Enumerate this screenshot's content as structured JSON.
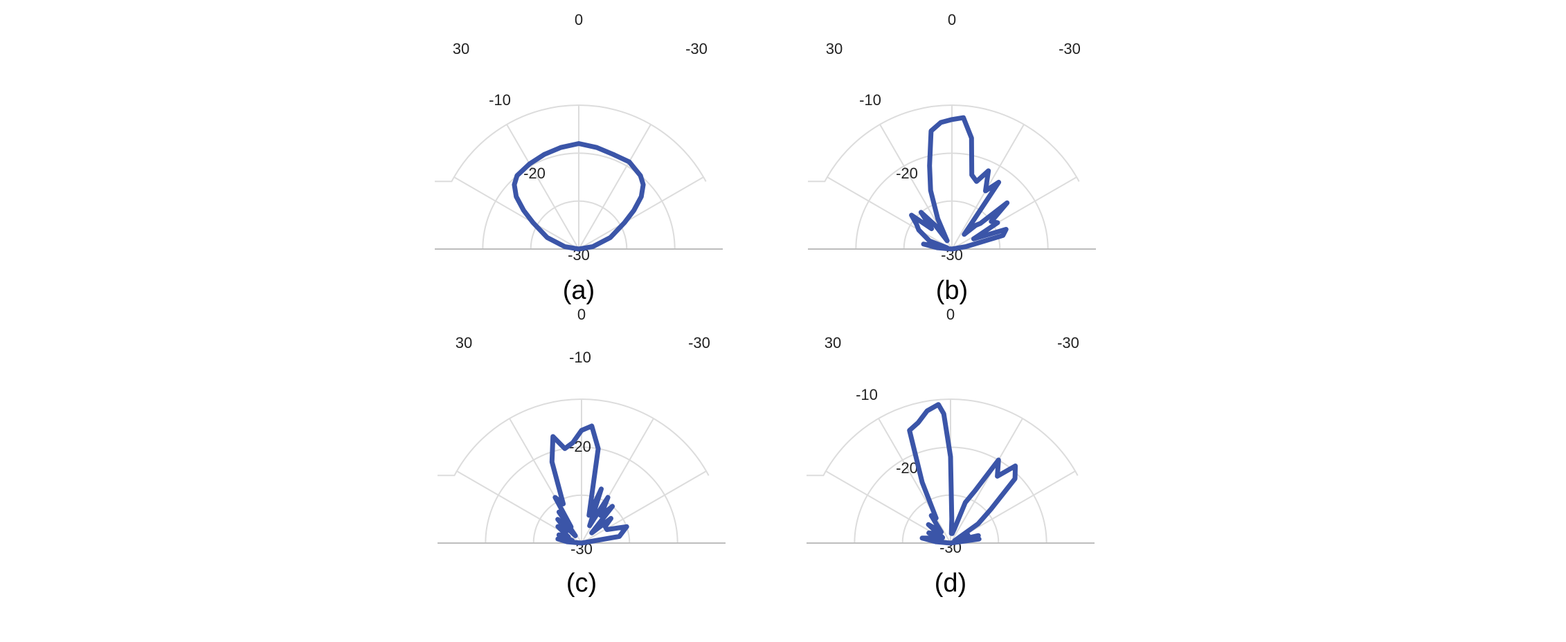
{
  "chart_data": [
    {
      "type": "polar-line",
      "panel_label": "(a)",
      "angle_ticks": [
        "0",
        "30",
        "-30"
      ],
      "radial_ticks": [
        "-10",
        "-20",
        "-30"
      ],
      "rlim": [
        -30,
        0
      ],
      "theta_range_deg": [
        -90,
        90
      ],
      "series": [
        {
          "color": "#3b55a8",
          "theta": [
            -90,
            -80,
            -70,
            -60,
            -55,
            -50,
            -45,
            -40,
            -30,
            -20,
            -10,
            0,
            10,
            20,
            30,
            40,
            45,
            50,
            55,
            60,
            70,
            80,
            90
          ],
          "r": [
            -30,
            -27,
            -23,
            -19,
            -16,
            -13,
            -11,
            -10,
            -9,
            -9,
            -8.5,
            -8,
            -8.5,
            -9,
            -9.5,
            -10,
            -11,
            -13,
            -16,
            -19,
            -23,
            -27,
            -30
          ]
        }
      ]
    },
    {
      "type": "polar-line",
      "panel_label": "(b)",
      "angle_ticks": [
        "0",
        "30",
        "-30"
      ],
      "radial_ticks": [
        "-10",
        "-20",
        "-30"
      ],
      "rlim": [
        -30,
        0
      ],
      "theta_range_deg": [
        -90,
        90
      ],
      "series": [
        {
          "color": "#3b55a8",
          "theta": [
            -88,
            -80,
            -75,
            -70,
            -65,
            -60,
            -55,
            -50,
            -48,
            -45,
            -40,
            -35,
            -30,
            -25,
            -20,
            -15,
            -10,
            -5,
            0,
            5,
            10,
            15,
            20,
            25,
            30,
            35,
            40,
            45,
            50,
            55,
            60,
            70,
            75,
            80,
            85,
            88
          ],
          "r": [
            -30,
            -27,
            -19,
            -18,
            -25,
            -19,
            -20,
            -15,
            -22,
            -23,
            -26,
            -13,
            -16,
            -12,
            -15,
            -14,
            -6.5,
            -2.5,
            -3,
            -3.5,
            -5,
            -12,
            -17,
            -23,
            -28,
            -24,
            -20,
            -24,
            -19,
            -21,
            -22,
            -25,
            -29,
            -24,
            -27,
            -30
          ]
        }
      ]
    },
    {
      "type": "polar-line",
      "panel_label": "(c)",
      "angle_ticks": [
        "0",
        "30",
        "-30"
      ],
      "radial_ticks": [
        "-10",
        "-20",
        "-30"
      ],
      "rlim": [
        -30,
        0
      ],
      "theta_range_deg": [
        -90,
        90
      ],
      "series": [
        {
          "color": "#3b55a8",
          "theta": [
            -88,
            -80,
            -70,
            -62,
            -55,
            -50,
            -45,
            -40,
            -35,
            -30,
            -25,
            -20,
            -15,
            -10,
            -5,
            0,
            5,
            10,
            15,
            20,
            25,
            30,
            33,
            36,
            40,
            45,
            50,
            55,
            60,
            65,
            70,
            75,
            80,
            85,
            88
          ],
          "r": [
            -30,
            -22,
            -20,
            -24,
            -24,
            -22,
            -27,
            -20,
            -23,
            -19,
            -26,
            -18,
            -24,
            -10,
            -5.5,
            -6.5,
            -9,
            -10,
            -7,
            -12,
            -21,
            -19,
            -26,
            -22,
            -28,
            -23,
            -26,
            -24,
            -26,
            -27,
            -25,
            -28,
            -25,
            -27,
            -30
          ]
        }
      ]
    },
    {
      "type": "polar-line",
      "panel_label": "(d)",
      "angle_ticks": [
        "0",
        "30",
        "-30"
      ],
      "radial_ticks": [
        "-10",
        "-20",
        "-30"
      ],
      "rlim": [
        -30,
        0
      ],
      "theta_range_deg": [
        -90,
        90
      ],
      "series": [
        {
          "color": "#3b55a8",
          "theta": [
            -88,
            -82,
            -78,
            -75,
            -70,
            -65,
            -60,
            -55,
            -50,
            -45,
            -40,
            -35,
            -30,
            -25,
            -20,
            -15,
            -10,
            -5,
            -3,
            0,
            3,
            5,
            10,
            15,
            20,
            25,
            30,
            35,
            40,
            45,
            50,
            55,
            60,
            65,
            70,
            75,
            80,
            85,
            88
          ],
          "r": [
            -30,
            -24,
            -27,
            -24,
            -28,
            -26,
            -29,
            -23,
            -19,
            -11,
            -9,
            -13,
            -10,
            -18,
            -21,
            -27,
            -28,
            -28,
            -25,
            -12,
            -3,
            -1,
            -2,
            -4,
            -5,
            -16,
            -24,
            -23,
            -27,
            -26,
            -24,
            -28,
            -26,
            -25,
            -28,
            -26,
            -24,
            -27,
            -30
          ]
        }
      ]
    }
  ]
}
